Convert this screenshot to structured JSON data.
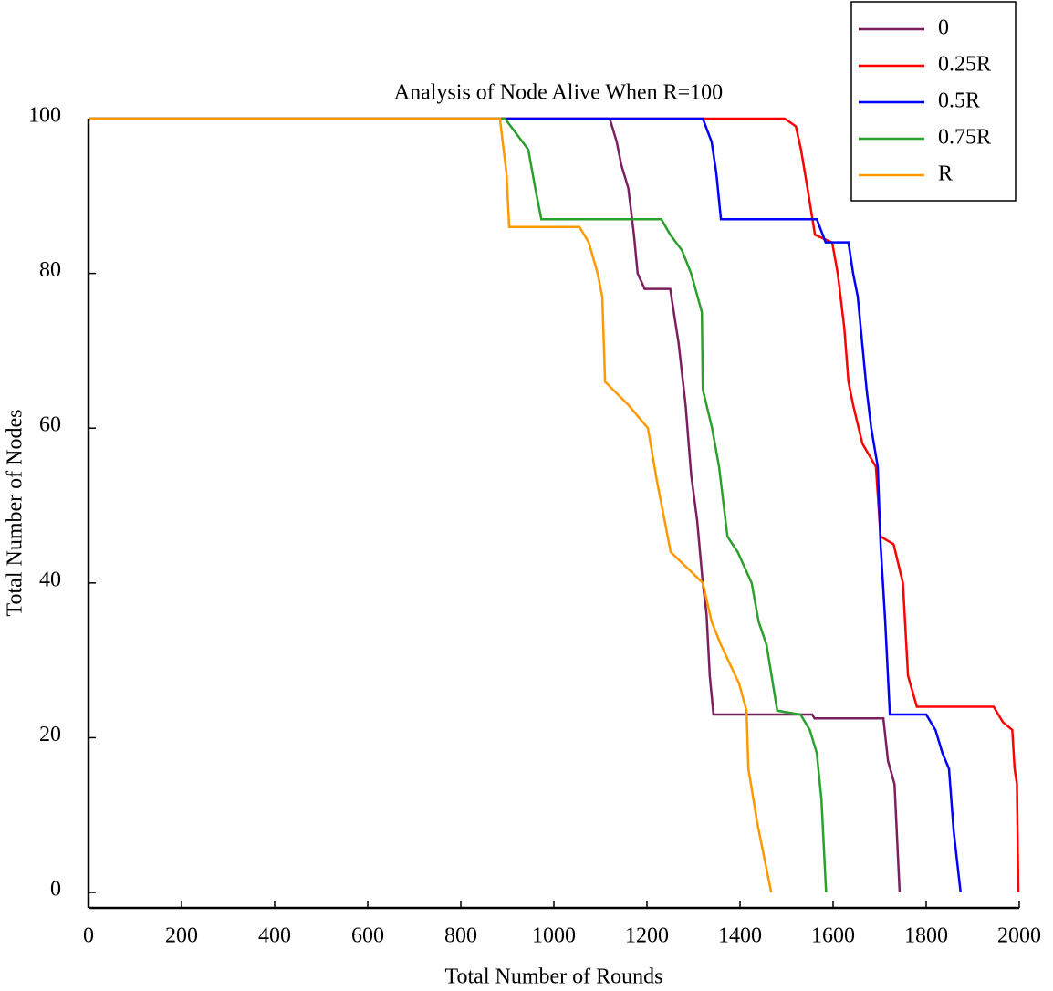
{
  "chart_data": {
    "type": "line",
    "title": "Analysis of Node Alive When R=100",
    "xlabel": "Total Number of Rounds",
    "ylabel": "Total Number of Nodes",
    "xlim": [
      0,
      2000
    ],
    "xticks": [
      0,
      200,
      400,
      600,
      800,
      1000,
      1200,
      1400,
      1600,
      1800,
      2000
    ],
    "ylim": [
      -2,
      100
    ],
    "yticks": [
      0,
      20,
      40,
      60,
      80,
      100
    ],
    "legend": "upper right",
    "series": [
      {
        "name": "0",
        "color": "#7b1f5e",
        "x": [
          0,
          1120,
          1135,
          1145,
          1160,
          1172,
          1180,
          1195,
          1250,
          1268,
          1283,
          1295,
          1308,
          1320,
          1328,
          1335,
          1343,
          1555,
          1560,
          1708,
          1718,
          1732,
          1743
        ],
        "values": [
          100,
          100,
          97,
          94,
          91,
          85,
          80,
          78,
          78,
          71,
          63,
          54,
          48,
          40,
          36,
          28,
          23,
          23,
          22.5,
          22.5,
          17,
          14,
          0
        ]
      },
      {
        "name": "0.25R",
        "color": "#ff0000",
        "x": [
          0,
          1496,
          1520,
          1531,
          1545,
          1561,
          1598,
          1610,
          1624,
          1633,
          1643,
          1663,
          1692,
          1702,
          1730,
          1750,
          1761,
          1780,
          1945,
          1965,
          1985,
          1990,
          1995,
          1998
        ],
        "values": [
          100,
          100,
          99,
          96,
          91,
          85,
          84,
          80,
          73,
          66,
          63,
          58,
          55,
          46,
          45,
          40,
          28,
          24,
          24,
          22,
          21,
          16,
          14,
          0
        ]
      },
      {
        "name": "0.5R",
        "color": "#0000ff",
        "x": [
          0,
          1320,
          1339,
          1349,
          1359,
          1565,
          1584,
          1633,
          1643,
          1653,
          1672,
          1682,
          1696,
          1702,
          1712,
          1722,
          1800,
          1820,
          1835,
          1849,
          1859,
          1874
        ],
        "values": [
          100,
          100,
          97,
          93,
          87,
          87,
          84,
          84,
          80,
          77,
          65,
          60,
          55,
          45,
          35,
          23,
          23,
          21,
          18,
          16,
          8,
          0
        ]
      },
      {
        "name": "0.75R",
        "color": "#2ca02c",
        "x": [
          0,
          895,
          920,
          945,
          960,
          973,
          1231,
          1250,
          1275,
          1295,
          1318,
          1320,
          1340,
          1355,
          1373,
          1395,
          1425,
          1440,
          1457,
          1480,
          1530,
          1550,
          1565,
          1575,
          1585
        ],
        "values": [
          100,
          100,
          98,
          96,
          91,
          87,
          87,
          85,
          83,
          80,
          75,
          65,
          60,
          55,
          46,
          44,
          40,
          35,
          32,
          23.5,
          23,
          21,
          18,
          12,
          0
        ]
      },
      {
        "name": "R",
        "color": "#ff9900",
        "x": [
          0,
          884,
          898,
          904,
          1055,
          1075,
          1094,
          1104,
          1110,
          1160,
          1202,
          1222,
          1251,
          1320,
          1339,
          1359,
          1398,
          1414,
          1418,
          1437,
          1467
        ],
        "values": [
          100,
          100,
          93,
          86,
          86,
          84,
          80,
          77,
          66,
          63,
          60,
          53,
          44,
          40,
          35,
          32,
          27,
          23.5,
          16,
          9,
          0
        ]
      }
    ]
  }
}
